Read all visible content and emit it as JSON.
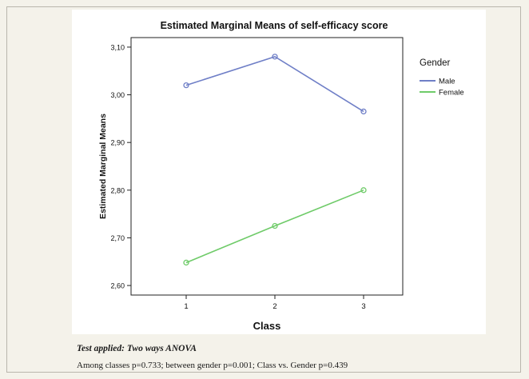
{
  "chart_data": {
    "type": "line",
    "title": "Estimated Marginal Means of self-efficacy score",
    "xlabel": "Class",
    "ylabel": "Estimated Marginal Means",
    "categories": [
      "1",
      "2",
      "3"
    ],
    "ylim": [
      2.58,
      3.12
    ],
    "yticks": [
      "2,60",
      "2,70",
      "2,80",
      "2,90",
      "3,00",
      "3,10"
    ],
    "ytick_values": [
      2.6,
      2.7,
      2.8,
      2.9,
      3.0,
      3.1
    ],
    "legend_title": "Gender",
    "legend_position": "right",
    "grid": false,
    "series": [
      {
        "name": "Male",
        "values": [
          3.02,
          3.08,
          2.965
        ],
        "color": "#6f7fc7"
      },
      {
        "name": "Female",
        "values": [
          2.648,
          2.725,
          2.8
        ],
        "color": "#6fcb69"
      }
    ]
  },
  "note": {
    "title": "Test applied: Two ways ANOVA",
    "text": "Among classes p=0.733; between gender p=0.001; Class vs. Gender p=0.439"
  }
}
